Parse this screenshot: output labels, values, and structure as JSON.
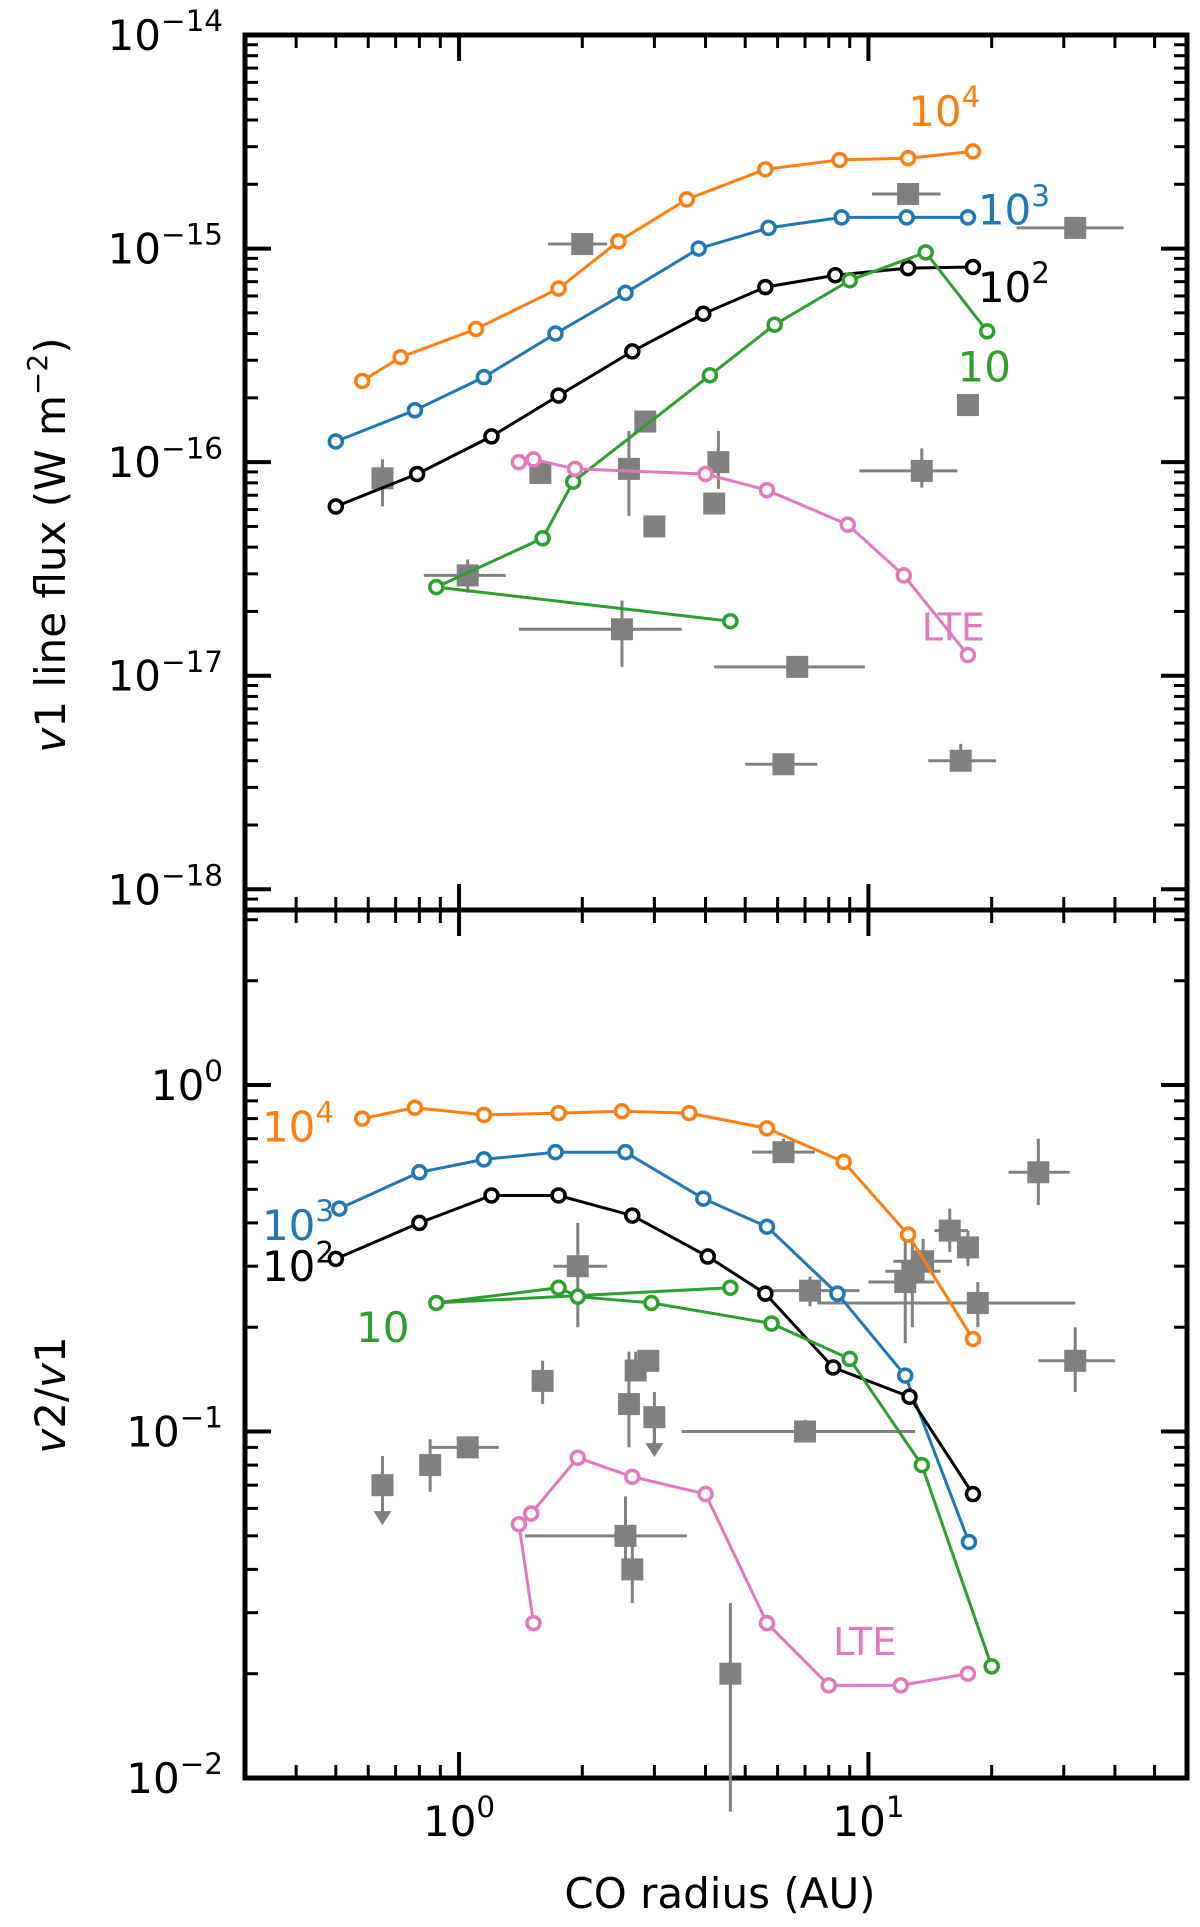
{
  "chart_data": [
    {
      "type": "scatter",
      "panel": "top",
      "ylabel": "v1 line flux (W m−2)",
      "ylabel_parts": {
        "v": "v",
        "rest": "1 line flux (W m",
        "sup": "−2",
        "close": ")"
      },
      "x_scale": "log",
      "y_scale": "log",
      "xlim": [
        0.3,
        60
      ],
      "ylim": [
        8e-19,
        1e-14
      ],
      "y_tick_labels": [
        {
          "value": 1e-18,
          "base": "10",
          "exp": "−18"
        },
        {
          "value": 1e-17,
          "base": "10",
          "exp": "−17"
        },
        {
          "value": 1e-16,
          "base": "10",
          "exp": "−16"
        },
        {
          "value": 1e-15,
          "base": "10",
          "exp": "−15"
        },
        {
          "value": 1e-14,
          "base": "10",
          "exp": "−14"
        }
      ],
      "series": [
        {
          "label_base": "10",
          "label_exp": "4",
          "color": "#ff7f0e",
          "label_pos": [
            12.5,
            4.4e-15
          ],
          "x": [
            0.58,
            0.72,
            1.1,
            1.75,
            2.45,
            3.6,
            5.6,
            8.5,
            12.5,
            18.0
          ],
          "y": [
            2.4e-16,
            3.1e-16,
            4.2e-16,
            6.5e-16,
            1.08e-15,
            1.7e-15,
            2.35e-15,
            2.6e-15,
            2.65e-15,
            2.85e-15
          ]
        },
        {
          "label_base": "10",
          "label_exp": "3",
          "color": "#1f77b4",
          "label_pos": [
            18.5,
            1.52e-15
          ],
          "x": [
            0.5,
            0.78,
            1.15,
            1.72,
            2.55,
            3.85,
            5.7,
            8.6,
            12.4,
            17.5
          ],
          "y": [
            1.25e-16,
            1.75e-16,
            2.5e-16,
            4e-16,
            6.2e-16,
            1e-15,
            1.25e-15,
            1.4e-15,
            1.4e-15,
            1.4e-15
          ]
        },
        {
          "label_base": "10",
          "label_exp": "2",
          "color": "#000000",
          "label_pos": [
            18.5,
            6.6e-16
          ],
          "x": [
            0.5,
            0.79,
            1.2,
            1.75,
            2.65,
            3.95,
            5.6,
            8.3,
            12.5,
            18.0
          ],
          "y": [
            6.2e-17,
            8.8e-17,
            1.32e-16,
            2.05e-16,
            3.3e-16,
            4.95e-16,
            6.6e-16,
            7.5e-16,
            8.1e-16,
            8.2e-16
          ]
        },
        {
          "label": "10",
          "color": "#2ca02c",
          "label_pos": [
            16.5,
            2.8e-16
          ],
          "x": [
            4.6,
            0.88,
            1.6,
            1.9,
            4.1,
            5.9,
            9.0,
            13.8,
            19.5
          ],
          "y": [
            1.8e-17,
            2.6e-17,
            4.4e-17,
            8.1e-17,
            2.55e-16,
            4.4e-16,
            7.1e-16,
            9.6e-16,
            4.1e-16
          ]
        },
        {
          "label": "LTE",
          "color": "#e377c2",
          "label_pos": [
            13.5,
            1.72e-17
          ],
          "x": [
            1.4,
            1.52,
            1.92,
            4.0,
            5.65,
            8.9,
            12.2,
            17.5
          ],
          "y": [
            1e-16,
            1.03e-16,
            9.3e-17,
            8.8e-17,
            7.4e-17,
            5.1e-17,
            2.95e-17,
            1.25e-17
          ]
        }
      ],
      "observations": [
        {
          "x": 0.65,
          "y": 8.4e-17,
          "xerr": [
            0.65,
            0.65
          ],
          "yerr": [
            6.2e-17,
            1.03e-16
          ]
        },
        {
          "x": 1.05,
          "y": 2.95e-17,
          "xerr": [
            0.82,
            1.3
          ],
          "yerr": [
            2.45e-17,
            3.5e-17
          ]
        },
        {
          "x": 1.58,
          "y": 8.9e-17,
          "xerr": [
            1.58,
            1.58
          ],
          "yerr": [
            8e-17,
            1e-16
          ]
        },
        {
          "x": 2.0,
          "y": 1.05e-15,
          "xerr": [
            1.65,
            2.3
          ],
          "yerr": [
            1.05e-15,
            1.05e-15
          ]
        },
        {
          "x": 2.5,
          "y": 1.65e-17,
          "xerr": [
            1.4,
            3.5
          ],
          "yerr": [
            1.1e-17,
            2.25e-17
          ]
        },
        {
          "x": 2.6,
          "y": 9.3e-17,
          "xerr": [
            2.45,
            2.75
          ],
          "yerr": [
            5.6e-17,
            1.4e-16
          ]
        },
        {
          "x": 2.85,
          "y": 1.55e-16,
          "xerr": [
            2.75,
            2.95
          ],
          "yerr": [
            1.45e-16,
            1.7e-16
          ]
        },
        {
          "x": 3.0,
          "y": 5e-17,
          "xerr": [
            3.0,
            3.0
          ],
          "yerr": [
            5e-17,
            5e-17
          ]
        },
        {
          "x": 4.3,
          "y": 1e-16,
          "xerr": [
            4.3,
            4.3
          ],
          "yerr": [
            7.5e-17,
            1.4e-16
          ]
        },
        {
          "x": 4.2,
          "y": 6.4e-17,
          "xerr": [
            4.2,
            4.2
          ],
          "yerr": [
            6.4e-17,
            6.4e-17
          ]
        },
        {
          "x": 6.2,
          "y": 3.85e-18,
          "xerr": [
            5.0,
            7.5
          ],
          "yerr": [
            3.85e-18,
            3.85e-18
          ]
        },
        {
          "x": 6.7,
          "y": 1.1e-17,
          "xerr": [
            4.2,
            9.8
          ],
          "yerr": [
            1.1e-17,
            1.1e-17
          ]
        },
        {
          "x": 12.5,
          "y": 1.8e-15,
          "xerr": [
            10.2,
            15.0
          ],
          "yerr": [
            1.8e-15,
            1.8e-15
          ]
        },
        {
          "x": 13.5,
          "y": 9.1e-17,
          "xerr": [
            9.5,
            16.5
          ],
          "yerr": [
            7.6e-17,
            1.16e-16
          ]
        },
        {
          "x": 16.8,
          "y": 4e-18,
          "xerr": [
            14.0,
            20.5
          ],
          "yerr": [
            3.6e-18,
            4.8e-18
          ]
        },
        {
          "x": 17.5,
          "y": 1.85e-16,
          "xerr": [
            16.5,
            18.5
          ],
          "yerr": [
            1.85e-16,
            1.85e-16
          ]
        },
        {
          "x": 32.0,
          "y": 1.25e-15,
          "xerr": [
            23.0,
            42.0
          ],
          "yerr": [
            1.25e-15,
            1.25e-15
          ]
        }
      ]
    },
    {
      "type": "scatter",
      "panel": "bottom",
      "xlabel": "CO radius (AU)",
      "ylabel": "v2/v1",
      "ylabel_parts": {
        "v1": "v",
        "mid": "2/",
        "v2": "v",
        "end": "1"
      },
      "x_scale": "log",
      "y_scale": "log",
      "xlim": [
        0.3,
        60
      ],
      "ylim": [
        0.01,
        3.2
      ],
      "x_tick_labels": [
        {
          "value": 1,
          "base": "10",
          "exp": "0"
        },
        {
          "value": 10,
          "base": "10",
          "exp": "1"
        }
      ],
      "y_tick_labels": [
        {
          "value": 0.01,
          "base": "10",
          "exp": "−2"
        },
        {
          "value": 0.1,
          "base": "10",
          "exp": "−1"
        },
        {
          "value": 1,
          "base": "10",
          "exp": "0"
        }
      ],
      "series": [
        {
          "label_base": "10",
          "label_exp": "4",
          "color": "#ff7f0e",
          "label_pos": [
            0.33,
            0.76
          ],
          "x": [
            0.58,
            0.78,
            1.15,
            1.75,
            2.5,
            3.65,
            5.65,
            8.7,
            12.5,
            18.0
          ],
          "y": [
            0.8,
            0.86,
            0.82,
            0.83,
            0.84,
            0.83,
            0.75,
            0.6,
            0.37,
            0.185
          ]
        },
        {
          "label_base": "10",
          "label_exp": "3",
          "color": "#1f77b4",
          "label_pos": [
            0.33,
            0.395
          ],
          "x": [
            0.51,
            0.8,
            1.15,
            1.72,
            2.55,
            3.95,
            5.65,
            8.4,
            12.3,
            17.6
          ],
          "y": [
            0.44,
            0.56,
            0.61,
            0.64,
            0.64,
            0.47,
            0.39,
            0.25,
            0.145,
            0.048
          ]
        },
        {
          "label_base": "10",
          "label_exp": "2",
          "color": "#000000",
          "label_pos": [
            0.33,
            0.3
          ],
          "x": [
            0.5,
            0.8,
            1.2,
            1.75,
            2.65,
            4.05,
            5.6,
            8.2,
            12.6,
            18.0
          ],
          "y": [
            0.315,
            0.4,
            0.48,
            0.48,
            0.42,
            0.32,
            0.25,
            0.153,
            0.126,
            0.066
          ]
        },
        {
          "label": "10",
          "color": "#2ca02c",
          "label_pos": [
            0.56,
            0.2
          ],
          "x": [
            4.6,
            0.88,
            1.75,
            1.95,
            2.95,
            5.8,
            9.0,
            13.5,
            20.0
          ],
          "y": [
            0.26,
            0.235,
            0.26,
            0.245,
            0.235,
            0.205,
            0.162,
            0.08,
            0.021
          ]
        },
        {
          "label": "LTE",
          "color": "#e377c2",
          "label_pos": [
            8.2,
            0.025
          ],
          "x": [
            1.52,
            1.4,
            1.5,
            1.95,
            2.65,
            4.0,
            5.65,
            8.0,
            12.0,
            17.5
          ],
          "y": [
            0.028,
            0.054,
            0.058,
            0.084,
            0.074,
            0.066,
            0.028,
            0.0185,
            0.0185,
            0.02
          ]
        }
      ],
      "observations": [
        {
          "x": 0.65,
          "y": 0.07,
          "xerr": [
            0.65,
            0.65
          ],
          "yerr": [
            0.07,
            0.085
          ],
          "upper_limit": true
        },
        {
          "x": 0.85,
          "y": 0.08,
          "xerr": [
            0.85,
            0.85
          ],
          "yerr": [
            0.067,
            0.095
          ]
        },
        {
          "x": 1.05,
          "y": 0.09,
          "xerr": [
            0.85,
            1.25
          ],
          "yerr": [
            0.086,
            0.096
          ]
        },
        {
          "x": 1.6,
          "y": 0.14,
          "xerr": [
            1.6,
            1.6
          ],
          "yerr": [
            0.12,
            0.16
          ]
        },
        {
          "x": 1.95,
          "y": 0.3,
          "xerr": [
            1.7,
            2.3
          ],
          "yerr": [
            0.2,
            0.4
          ]
        },
        {
          "x": 2.55,
          "y": 0.05,
          "xerr": [
            1.45,
            3.6
          ],
          "yerr": [
            0.04,
            0.065
          ]
        },
        {
          "x": 2.6,
          "y": 0.12,
          "xerr": [
            2.45,
            2.75
          ],
          "yerr": [
            0.09,
            0.17
          ]
        },
        {
          "x": 2.65,
          "y": 0.04,
          "xerr": [
            2.65,
            2.65
          ],
          "yerr": [
            0.032,
            0.05
          ]
        },
        {
          "x": 2.7,
          "y": 0.15,
          "xerr": [
            2.6,
            2.8
          ],
          "yerr": [
            0.14,
            0.17
          ]
        },
        {
          "x": 2.9,
          "y": 0.16,
          "xerr": [
            2.75,
            3.05
          ],
          "yerr": [
            0.15,
            0.17
          ]
        },
        {
          "x": 3.0,
          "y": 0.11,
          "xerr": [
            3.0,
            3.0
          ],
          "yerr": [
            0.09,
            0.13
          ],
          "upper_limit": true
        },
        {
          "x": 4.6,
          "y": 0.02,
          "xerr": [
            4.6,
            4.6
          ],
          "yerr": [
            0.008,
            0.032
          ]
        },
        {
          "x": 6.2,
          "y": 0.64,
          "xerr": [
            5.2,
            7.4
          ],
          "yerr": [
            0.6,
            0.7
          ]
        },
        {
          "x": 7.0,
          "y": 0.1,
          "xerr": [
            3.5,
            13.0
          ],
          "yerr": [
            0.093,
            0.108
          ]
        },
        {
          "x": 7.2,
          "y": 0.255,
          "xerr": [
            5.5,
            9.5
          ],
          "yerr": [
            0.23,
            0.28
          ]
        },
        {
          "x": 12.3,
          "y": 0.27,
          "xerr": [
            10.0,
            14.5
          ],
          "yerr": [
            0.18,
            0.38
          ]
        },
        {
          "x": 12.8,
          "y": 0.29,
          "xerr": [
            11.0,
            15.0
          ],
          "yerr": [
            0.2,
            0.38
          ]
        },
        {
          "x": 13.6,
          "y": 0.31,
          "xerr": [
            11.5,
            16.0
          ],
          "yerr": [
            0.27,
            0.36
          ]
        },
        {
          "x": 15.8,
          "y": 0.38,
          "xerr": [
            14.5,
            17.5
          ],
          "yerr": [
            0.33,
            0.44
          ]
        },
        {
          "x": 17.5,
          "y": 0.34,
          "xerr": [
            16.5,
            18.5
          ],
          "yerr": [
            0.3,
            0.38
          ]
        },
        {
          "x": 18.5,
          "y": 0.235,
          "xerr": [
            7.5,
            32.0
          ],
          "yerr": [
            0.2,
            0.27
          ]
        },
        {
          "x": 26.0,
          "y": 0.56,
          "xerr": [
            22.0,
            31.0
          ],
          "yerr": [
            0.45,
            0.7
          ]
        },
        {
          "x": 32.0,
          "y": 0.16,
          "xerr": [
            26.0,
            40.0
          ],
          "yerr": [
            0.13,
            0.2
          ]
        }
      ]
    }
  ]
}
